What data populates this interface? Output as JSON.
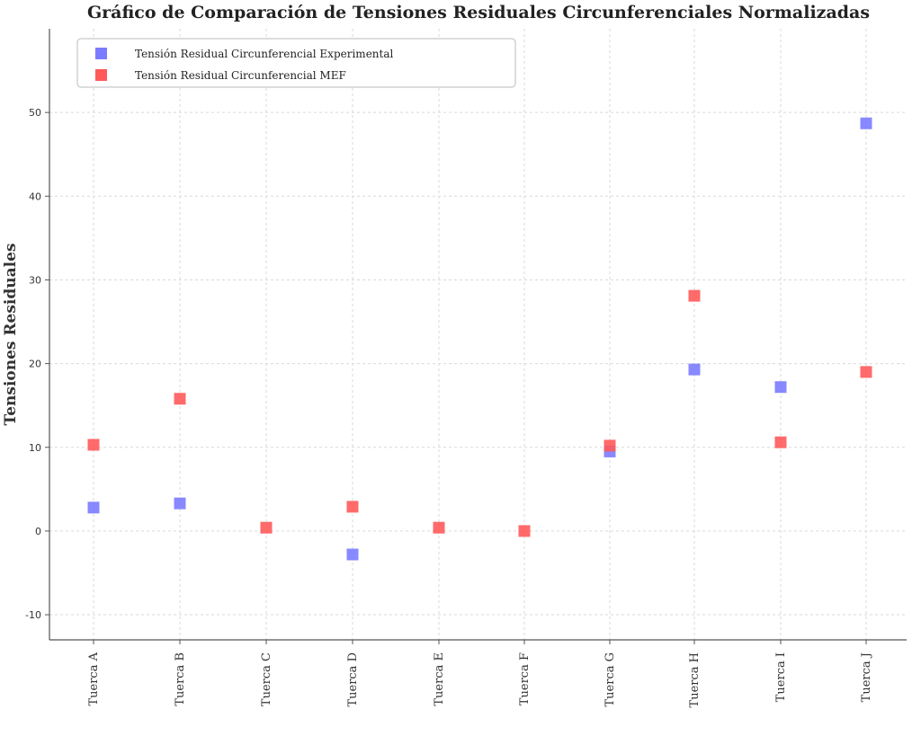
{
  "chart_data": {
    "type": "scatter",
    "title": "Gráfico de Comparación de Tensiones Residuales Circunferenciales Normalizadas",
    "xlabel": "",
    "ylabel": "Tensiones Residuales",
    "categories": [
      "Tuerca A",
      "Tuerca B",
      "Tuerca C",
      "Tuerca D",
      "Tuerca E",
      "Tuerca F",
      "Tuerca G",
      "Tuerca H",
      "Tuerca I",
      "Tuerca J"
    ],
    "yticks": [
      -10,
      0,
      10,
      20,
      30,
      40,
      50
    ],
    "ylim": [
      -13,
      60
    ],
    "grid": true,
    "legend_position": "top-left",
    "series": [
      {
        "name": "Tensión Residual Circunferencial Experimental",
        "color": "#7b7bff",
        "values": [
          2.8,
          3.3,
          null,
          -2.8,
          null,
          null,
          9.5,
          19.3,
          17.2,
          48.7
        ]
      },
      {
        "name": "Tensión Residual Circunferencial MEF",
        "color": "#ff5a5a",
        "values": [
          10.3,
          15.8,
          0.4,
          2.9,
          0.4,
          0.0,
          10.2,
          28.1,
          10.6,
          19.0
        ]
      }
    ]
  }
}
